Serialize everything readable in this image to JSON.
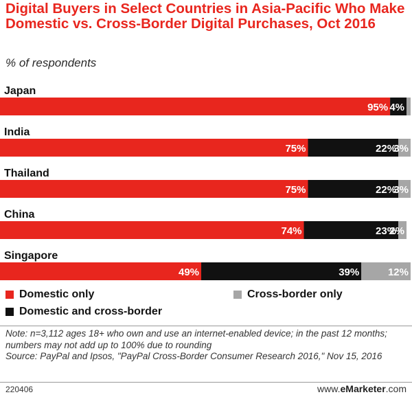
{
  "title": "Digital Buyers in Select Countries in Asia-Pacific Who Make Domestic vs. Cross-Border Digital Purchases, Oct 2016",
  "subtitle": "% of respondents",
  "legend": {
    "domestic": "Domestic only",
    "both": "Domestic and cross-border",
    "cross": "Cross-border only"
  },
  "note": "Note: n=3,112 ages 18+ who own and use an internet-enabled device; in the past 12 months; numbers may not add up to 100% due to rounding",
  "source": "Source: PayPal and Ipsos, \"PayPal Cross-Border Consumer Research 2016,\" Nov 15, 2016",
  "chart_id": "220406",
  "brand_prefix": "www.",
  "brand_name": "eMarketer",
  "brand_suffix": ".com",
  "colors": {
    "domestic": "#e8261e",
    "both": "#111111",
    "cross": "#a6a6a6"
  },
  "chart_data": {
    "type": "bar",
    "stacked": true,
    "orientation": "horizontal",
    "title": "Digital Buyers in Select Countries in Asia-Pacific Who Make Domestic vs. Cross-Border Digital Purchases, Oct 2016",
    "subtitle": "% of respondents",
    "categories": [
      "Japan",
      "India",
      "Thailand",
      "China",
      "Singapore"
    ],
    "series": [
      {
        "name": "Domestic only",
        "values": [
          95,
          75,
          75,
          74,
          49
        ]
      },
      {
        "name": "Domestic and cross-border",
        "values": [
          4,
          22,
          22,
          23,
          39
        ]
      },
      {
        "name": "Cross-border only",
        "values": [
          1,
          3,
          3,
          2,
          12
        ]
      }
    ],
    "labels": [
      [
        "95%",
        "4%",
        ""
      ],
      [
        "75%",
        "22%",
        "3%"
      ],
      [
        "75%",
        "22%",
        "3%"
      ],
      [
        "74%",
        "23%",
        "2%"
      ],
      [
        "49%",
        "39%",
        "12%"
      ]
    ],
    "xlim": [
      0,
      100
    ],
    "legend_position": "bottom",
    "grid": false
  }
}
